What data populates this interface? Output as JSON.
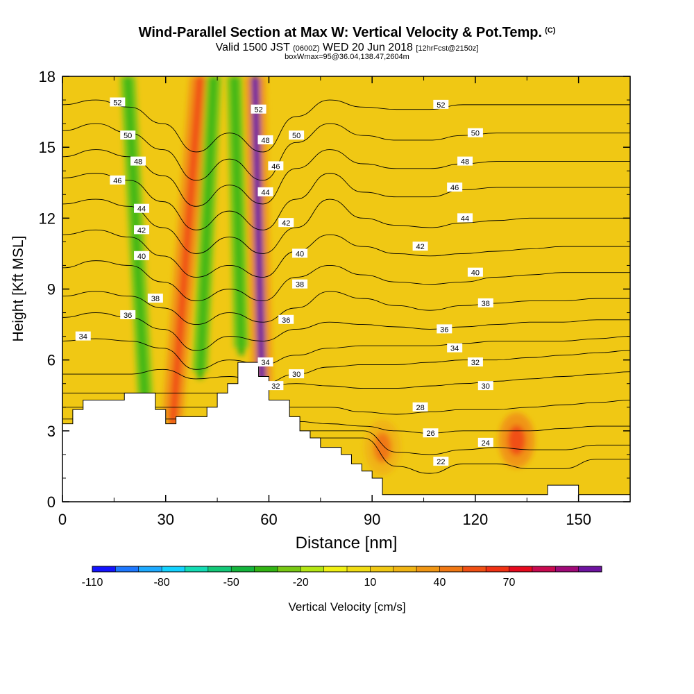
{
  "header": {
    "title": "Wind-Parallel Section at Max W: Vertical Velocity & Pot.Temp.",
    "copyright": "(C)",
    "valid_a": "Valid 1500 JST",
    "valid_z": "(0600Z)",
    "valid_b": "WED 20 Jun 2018",
    "forecast": "[12hrFcst@2150z]",
    "subtitle2": "boxWmax=95@36.04,138.47,2604m"
  },
  "chart_data": {
    "type": "heatmap",
    "xlabel": "Distance [nm]",
    "ylabel": "Height [Kft MSL]",
    "xlim": [
      0,
      165
    ],
    "ylim": [
      0,
      18
    ],
    "x_ticks": [
      "0",
      "30",
      "60",
      "90",
      "120",
      "150"
    ],
    "y_ticks": [
      "0",
      "3",
      "6",
      "9",
      "12",
      "15",
      "18"
    ],
    "colorbar": {
      "label": "Vertical Velocity [cm/s]",
      "tick_labels": [
        "-110",
        "-80",
        "-50",
        "-20",
        "10",
        "40",
        "70"
      ],
      "colors": [
        "#1414ff",
        "#1e78ff",
        "#1eaaff",
        "#14d2ff",
        "#14dcb4",
        "#14c878",
        "#14b43c",
        "#32b414",
        "#78c814",
        "#b4e614",
        "#f0f014",
        "#f0dc14",
        "#f0c814",
        "#f0b414",
        "#f09614",
        "#f07814",
        "#f05014",
        "#f03214",
        "#e60a1e",
        "#c80a50",
        "#a00a78",
        "#6e14a0"
      ]
    },
    "theta_series": [
      {
        "label": "22",
        "y": [
          2.7,
          2.7,
          2.7,
          2.7,
          2.7,
          2.7,
          2.7,
          2.7,
          2.7,
          2.7,
          1.5,
          1.2,
          1.6,
          1.6,
          1.4,
          1.4,
          1.8,
          1.8
        ]
      },
      {
        "label": "24",
        "y": [
          3.0,
          3.0,
          3.0,
          3.0,
          3.0,
          3.0,
          3.0,
          3.0,
          3.0,
          3.0,
          2.1,
          2.0,
          2.2,
          2.3,
          2.2,
          2.2,
          2.4,
          2.4
        ]
      },
      {
        "label": "26",
        "y": [
          3.5,
          3.5,
          3.5,
          3.5,
          3.5,
          3.5,
          3.5,
          3.4,
          3.3,
          3.2,
          3.0,
          2.9,
          3.0,
          3.0,
          3.0,
          3.1,
          3.2,
          3.2
        ]
      },
      {
        "label": "28",
        "y": [
          4.0,
          4.0,
          4.0,
          4.0,
          4.0,
          4.0,
          4.0,
          4.0,
          4.0,
          3.8,
          3.7,
          3.8,
          3.9,
          3.9,
          4.0,
          4.1,
          4.2,
          4.3
        ]
      },
      {
        "label": "30",
        "y": [
          4.6,
          4.6,
          4.6,
          4.6,
          4.6,
          4.6,
          4.9,
          5.0,
          4.9,
          4.8,
          4.8,
          4.9,
          5.0,
          5.1,
          5.2,
          5.3,
          5.4,
          5.5
        ]
      },
      {
        "label": "32",
        "y": [
          5.4,
          5.4,
          5.4,
          5.6,
          5.2,
          5.3,
          5.0,
          5.4,
          5.7,
          5.8,
          5.8,
          5.9,
          6.0,
          6.0,
          6.1,
          6.2,
          6.3,
          6.4
        ]
      },
      {
        "label": "34",
        "y": [
          6.8,
          6.9,
          6.8,
          6.5,
          5.6,
          6.0,
          5.8,
          6.2,
          6.5,
          6.6,
          6.6,
          6.6,
          6.7,
          6.8,
          6.8,
          6.8,
          6.9,
          7.0
        ]
      },
      {
        "label": "36",
        "y": [
          7.8,
          8.0,
          7.8,
          7.3,
          6.4,
          7.0,
          6.8,
          7.3,
          7.6,
          7.5,
          7.4,
          7.3,
          7.4,
          7.5,
          7.6,
          7.6,
          7.7,
          7.7
        ]
      },
      {
        "label": "38",
        "y": [
          8.7,
          8.9,
          8.7,
          8.2,
          7.5,
          8.0,
          7.6,
          8.2,
          8.9,
          8.6,
          8.3,
          8.1,
          8.3,
          8.4,
          8.5,
          8.5,
          8.6,
          8.6
        ]
      },
      {
        "label": "40",
        "y": [
          9.9,
          10.2,
          10.0,
          9.3,
          8.5,
          9.0,
          8.5,
          9.5,
          10.0,
          9.6,
          9.3,
          9.2,
          9.3,
          9.5,
          9.6,
          9.7,
          9.7,
          9.7
        ]
      },
      {
        "label": "42",
        "y": [
          11.3,
          11.5,
          11.2,
          10.4,
          9.5,
          10.0,
          9.5,
          10.6,
          11.3,
          10.8,
          10.5,
          10.4,
          10.5,
          10.6,
          10.7,
          10.8,
          10.8,
          10.8
        ]
      },
      {
        "label": "44",
        "y": [
          12.6,
          12.8,
          12.5,
          11.6,
          10.5,
          11.2,
          10.5,
          11.6,
          12.8,
          12.0,
          11.7,
          11.6,
          11.8,
          11.9,
          12.0,
          12.0,
          12.0,
          12.0
        ]
      },
      {
        "label": "46",
        "y": [
          13.7,
          13.9,
          13.6,
          12.7,
          11.5,
          12.3,
          11.5,
          12.8,
          13.9,
          13.1,
          12.9,
          12.9,
          13.2,
          13.3,
          13.3,
          13.3,
          13.3,
          13.3
        ]
      },
      {
        "label": "48",
        "y": [
          14.6,
          14.9,
          14.6,
          13.8,
          12.5,
          13.4,
          12.6,
          14.1,
          14.9,
          14.3,
          14.1,
          14.1,
          14.3,
          14.4,
          14.4,
          14.4,
          14.4,
          14.4
        ]
      },
      {
        "label": "50",
        "y": [
          15.7,
          16.0,
          15.6,
          14.9,
          13.6,
          14.5,
          13.6,
          15.2,
          16.0,
          15.5,
          15.3,
          15.3,
          15.5,
          15.6,
          15.6,
          15.6,
          15.6,
          15.6
        ]
      },
      {
        "label": "52",
        "y": [
          16.8,
          17.0,
          16.7,
          16.0,
          14.8,
          15.6,
          14.8,
          16.3,
          17.0,
          16.7,
          16.6,
          16.6,
          16.8,
          16.8,
          16.8,
          16.8,
          16.8,
          16.8
        ]
      }
    ],
    "labeled_points": [
      {
        "label": "52",
        "x": 16,
        "y": 16.9
      },
      {
        "label": "52",
        "x": 57,
        "y": 16.6
      },
      {
        "label": "52",
        "x": 110,
        "y": 16.8
      },
      {
        "label": "50",
        "x": 19,
        "y": 15.5
      },
      {
        "label": "50",
        "x": 68,
        "y": 15.5
      },
      {
        "label": "50",
        "x": 120,
        "y": 15.6
      },
      {
        "label": "48",
        "x": 22,
        "y": 14.4
      },
      {
        "label": "48",
        "x": 59,
        "y": 15.3
      },
      {
        "label": "48",
        "x": 117,
        "y": 14.4
      },
      {
        "label": "46",
        "x": 16,
        "y": 13.6
      },
      {
        "label": "46",
        "x": 62,
        "y": 14.2
      },
      {
        "label": "46",
        "x": 114,
        "y": 13.3
      },
      {
        "label": "44",
        "x": 23,
        "y": 12.4
      },
      {
        "label": "44",
        "x": 59,
        "y": 13.1
      },
      {
        "label": "44",
        "x": 117,
        "y": 12.0
      },
      {
        "label": "42",
        "x": 23,
        "y": 11.5
      },
      {
        "label": "42",
        "x": 65,
        "y": 11.8
      },
      {
        "label": "42",
        "x": 104,
        "y": 10.8
      },
      {
        "label": "40",
        "x": 23,
        "y": 10.4
      },
      {
        "label": "40",
        "x": 69,
        "y": 10.5
      },
      {
        "label": "40",
        "x": 120,
        "y": 9.7
      },
      {
        "label": "38",
        "x": 27,
        "y": 8.6
      },
      {
        "label": "38",
        "x": 69,
        "y": 9.2
      },
      {
        "label": "38",
        "x": 123,
        "y": 8.4
      },
      {
        "label": "36",
        "x": 19,
        "y": 7.9
      },
      {
        "label": "36",
        "x": 65,
        "y": 7.7
      },
      {
        "label": "36",
        "x": 111,
        "y": 7.3
      },
      {
        "label": "34",
        "x": 6,
        "y": 7.0
      },
      {
        "label": "34",
        "x": 59,
        "y": 5.9
      },
      {
        "label": "34",
        "x": 114,
        "y": 6.5
      },
      {
        "label": "32",
        "x": 62,
        "y": 4.9
      },
      {
        "label": "32",
        "x": 120,
        "y": 5.9
      },
      {
        "label": "30",
        "x": 68,
        "y": 5.4
      },
      {
        "label": "30",
        "x": 123,
        "y": 4.9
      },
      {
        "label": "28",
        "x": 104,
        "y": 4.0
      },
      {
        "label": "26",
        "x": 107,
        "y": 2.9
      },
      {
        "label": "24",
        "x": 123,
        "y": 2.5
      },
      {
        "label": "22",
        "x": 110,
        "y": 1.7
      }
    ],
    "features": [
      {
        "type": "updraft",
        "x": 32,
        "y_bottom": 3.5,
        "y_top": 18,
        "tilt_nm": 8,
        "value_cm_s": 50
      },
      {
        "type": "updraft",
        "x": 58,
        "y_bottom": 5.0,
        "y_top": 18,
        "tilt_nm": -2,
        "value_cm_s": 95
      },
      {
        "type": "downdraft",
        "x": 24,
        "y_bottom": 4.5,
        "y_top": 18,
        "tilt_nm": -5,
        "value_cm_s": -45
      },
      {
        "type": "downdraft",
        "x": 40,
        "y_bottom": 5.5,
        "y_top": 18,
        "tilt_nm": 4,
        "value_cm_s": -45
      },
      {
        "type": "downdraft",
        "x": 52,
        "y_bottom": 6.5,
        "y_top": 18,
        "tilt_nm": -2,
        "value_cm_s": -45
      },
      {
        "type": "updraft_lowlevel",
        "x": 93,
        "y": 2.3,
        "value_cm_s": 35
      },
      {
        "type": "updraft_lowlevel",
        "x": 132,
        "y": 2.6,
        "value_cm_s": 45
      }
    ],
    "terrain": {
      "x": [
        0,
        3,
        3,
        6,
        6,
        12,
        12,
        18,
        18,
        27,
        27,
        30,
        30,
        33,
        33,
        36,
        36,
        42,
        42,
        45,
        45,
        48,
        48,
        51,
        51,
        57,
        57,
        60,
        60,
        66,
        66,
        69,
        69,
        72,
        72,
        75,
        75,
        81,
        81,
        84,
        84,
        87,
        87,
        90,
        90,
        93,
        93,
        141,
        141,
        150,
        150,
        165
      ],
      "y": [
        3.3,
        3.3,
        3.9,
        3.9,
        4.3,
        4.3,
        4.3,
        4.3,
        4.6,
        4.6,
        3.9,
        3.9,
        3.3,
        3.3,
        3.6,
        3.6,
        3.6,
        3.6,
        4.0,
        4.0,
        4.6,
        4.6,
        5.0,
        5.0,
        5.9,
        5.9,
        5.3,
        5.3,
        4.3,
        4.3,
        3.6,
        3.6,
        3.0,
        3.0,
        2.7,
        2.7,
        2.3,
        2.3,
        2.0,
        2.0,
        1.6,
        1.6,
        1.3,
        1.3,
        1.0,
        1.0,
        0.3,
        0.3,
        0.7,
        0.7,
        0.3,
        0.3
      ]
    }
  }
}
